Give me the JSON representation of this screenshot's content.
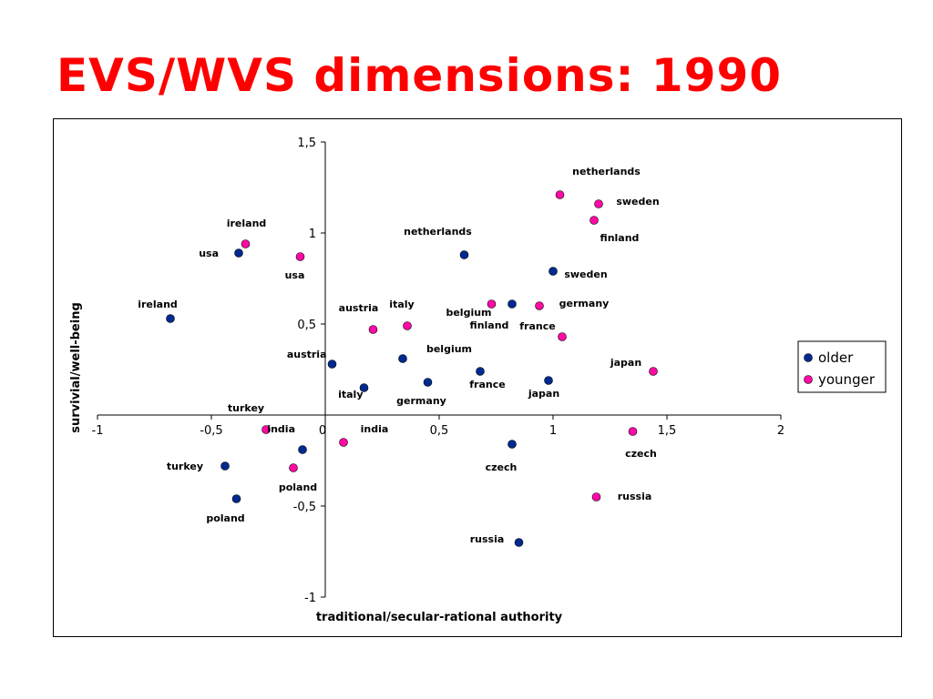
{
  "slide": {
    "title": "EVS/WVS dimensions: 1990"
  },
  "chart_data": {
    "type": "scatter",
    "title": "",
    "xlabel": "traditional/secular-rational authority",
    "ylabel": "survivial/well-being",
    "xlim": [
      -1,
      2
    ],
    "ylim": [
      -1,
      1.5
    ],
    "x_ticks": [
      {
        "value": -1,
        "label": "-1"
      },
      {
        "value": -0.5,
        "label": "-0,5"
      },
      {
        "value": 0,
        "label": "0"
      },
      {
        "value": 0.5,
        "label": "0,5"
      },
      {
        "value": 1,
        "label": "1"
      },
      {
        "value": 1.5,
        "label": "1,5"
      },
      {
        "value": 2,
        "label": "2"
      }
    ],
    "y_ticks": [
      {
        "value": -1,
        "label": "-1"
      },
      {
        "value": -0.5,
        "label": "-0,5"
      },
      {
        "value": 0,
        "label": "0"
      },
      {
        "value": 0.5,
        "label": "0,5"
      },
      {
        "value": 1,
        "label": "1"
      },
      {
        "value": 1.5,
        "label": "1,5"
      }
    ],
    "legend_position": "right",
    "grid": false,
    "series": [
      {
        "name": "older",
        "color": "#002a8f",
        "points": [
          {
            "label": "usa",
            "x": -0.38,
            "y": 0.89
          },
          {
            "label": "ireland",
            "x": -0.68,
            "y": 0.53
          },
          {
            "label": "austria",
            "x": 0.03,
            "y": 0.28
          },
          {
            "label": "italy",
            "x": 0.17,
            "y": 0.15
          },
          {
            "label": "belgium",
            "x": 0.34,
            "y": 0.31
          },
          {
            "label": "germany",
            "x": 0.45,
            "y": 0.18
          },
          {
            "label": "france",
            "x": 0.68,
            "y": 0.24
          },
          {
            "label": "netherlands",
            "x": 0.61,
            "y": 0.88
          },
          {
            "label": "finland",
            "x": 0.82,
            "y": 0.61
          },
          {
            "label": "sweden",
            "x": 1.0,
            "y": 0.79
          },
          {
            "label": "japan",
            "x": 0.98,
            "y": 0.19
          },
          {
            "label": "india",
            "x": -0.1,
            "y": -0.19
          },
          {
            "label": "turkey",
            "x": -0.44,
            "y": -0.28
          },
          {
            "label": "poland",
            "x": -0.39,
            "y": -0.46
          },
          {
            "label": "czech",
            "x": 0.82,
            "y": -0.16
          },
          {
            "label": "russia",
            "x": 0.85,
            "y": -0.7
          }
        ]
      },
      {
        "name": "younger",
        "color": "#ff0aa4",
        "points": [
          {
            "label": "ireland",
            "x": -0.35,
            "y": 0.94
          },
          {
            "label": "usa",
            "x": -0.11,
            "y": 0.87
          },
          {
            "label": "austria",
            "x": 0.21,
            "y": 0.47
          },
          {
            "label": "italy",
            "x": 0.36,
            "y": 0.49
          },
          {
            "label": "belgium",
            "x": 0.73,
            "y": 0.61
          },
          {
            "label": "germany",
            "x": 0.94,
            "y": 0.6
          },
          {
            "label": "france",
            "x": 1.04,
            "y": 0.43
          },
          {
            "label": "netherlands",
            "x": 1.03,
            "y": 1.21
          },
          {
            "label": "sweden",
            "x": 1.2,
            "y": 1.16
          },
          {
            "label": "finland",
            "x": 1.18,
            "y": 1.07
          },
          {
            "label": "japan",
            "x": 1.44,
            "y": 0.24
          },
          {
            "label": "turkey",
            "x": -0.26,
            "y": -0.08
          },
          {
            "label": "india",
            "x": 0.08,
            "y": -0.15
          },
          {
            "label": "poland",
            "x": -0.14,
            "y": -0.29
          },
          {
            "label": "czech",
            "x": 1.35,
            "y": -0.09
          },
          {
            "label": "russia",
            "x": 1.19,
            "y": -0.45
          }
        ]
      }
    ]
  }
}
